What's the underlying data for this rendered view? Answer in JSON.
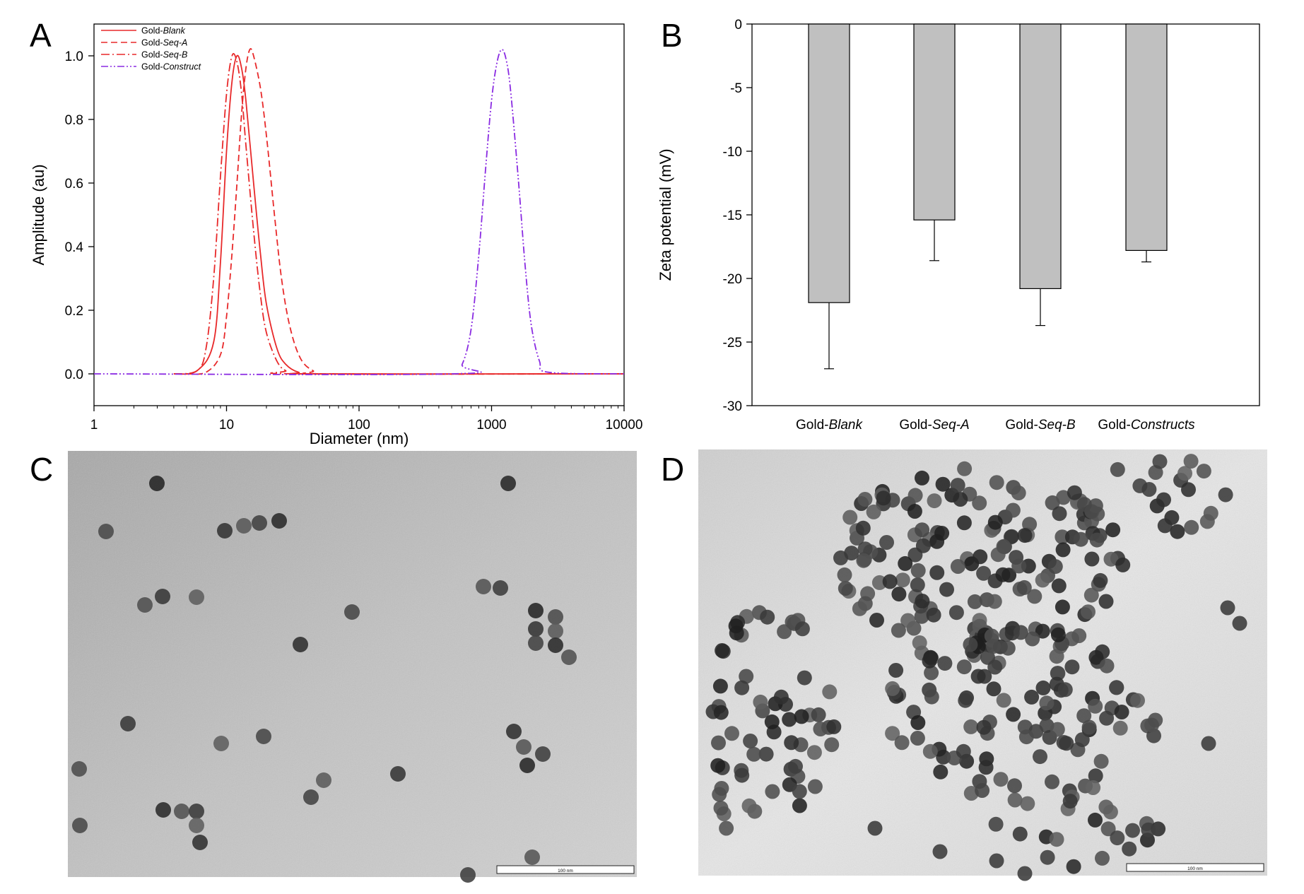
{
  "panels": {
    "A": "A",
    "B": "B",
    "C": "C",
    "D": "D"
  },
  "chart_data": [
    {
      "panel": "A",
      "type": "line",
      "xscale": "log",
      "xlabel": "Diameter (nm)",
      "ylabel": "Amplitude (au)",
      "xlim": [
        1,
        10000
      ],
      "ylim": [
        -0.1,
        1.1
      ],
      "xticks": [
        "1",
        "10",
        "100",
        "1000",
        "10000"
      ],
      "yticks": [
        "0.0",
        "0.2",
        "0.4",
        "0.6",
        "0.8",
        "1.0"
      ],
      "legend_position": "top-left",
      "colors": {
        "gold": "#e8292a",
        "construct": "#8a2be2"
      },
      "series": [
        {
          "name": "Gold-",
          "name_italic": "Blank",
          "style": "solid",
          "color": "#e8292a",
          "x": [
            4,
            6,
            8,
            9,
            10,
            11,
            12,
            13,
            14,
            16,
            18,
            20,
            24,
            28,
            35,
            50,
            10000
          ],
          "y": [
            0,
            0.01,
            0.1,
            0.35,
            0.7,
            0.92,
            1.0,
            0.96,
            0.86,
            0.6,
            0.38,
            0.22,
            0.08,
            0.03,
            0.005,
            0,
            0
          ]
        },
        {
          "name": "Gold-",
          "name_italic": "Seq-A",
          "style": "dashed",
          "color": "#e8292a",
          "x": [
            5,
            7,
            9,
            10,
            11,
            12,
            13,
            14,
            15,
            16,
            18,
            20,
            23,
            26,
            30,
            36,
            45,
            60,
            10000
          ],
          "y": [
            0,
            0.005,
            0.06,
            0.18,
            0.38,
            0.6,
            0.82,
            0.96,
            1.02,
            1.0,
            0.9,
            0.75,
            0.5,
            0.3,
            0.15,
            0.05,
            0.01,
            0,
            0
          ]
        },
        {
          "name": "Gold-",
          "name_italic": "Seq-B",
          "style": "dashdot",
          "color": "#e8292a",
          "x": [
            4,
            6,
            7,
            8,
            9,
            10,
            11,
            12,
            13,
            14,
            16,
            18,
            20,
            24,
            28,
            35,
            10000
          ],
          "y": [
            0,
            0.01,
            0.08,
            0.3,
            0.62,
            0.88,
            1.0,
            0.98,
            0.88,
            0.72,
            0.45,
            0.25,
            0.13,
            0.04,
            0.01,
            0,
            0
          ]
        },
        {
          "name": "Gold-",
          "name_italic": "Construct",
          "style": "dashdotdot",
          "color": "#8a2be2",
          "x": [
            1,
            500,
            600,
            700,
            800,
            900,
            1000,
            1100,
            1200,
            1300,
            1400,
            1600,
            1800,
            2000,
            2300,
            2700,
            10000
          ],
          "y": [
            0,
            0,
            0.03,
            0.14,
            0.37,
            0.64,
            0.86,
            0.98,
            1.02,
            0.98,
            0.88,
            0.6,
            0.33,
            0.15,
            0.04,
            0.005,
            0
          ]
        }
      ]
    },
    {
      "panel": "B",
      "type": "bar",
      "ylabel": "Zeta potential (mV)",
      "ylim": [
        -30,
        0
      ],
      "yticks": [
        "0",
        "-5",
        "-10",
        "-15",
        "-20",
        "-25",
        "-30"
      ],
      "bar_color": "#c0c0c0",
      "categories": [
        {
          "prefix": "Gold-",
          "italic": "Blank"
        },
        {
          "prefix": "Gold-",
          "italic": "Seq-A"
        },
        {
          "prefix": "Gold-",
          "italic": "Seq-B"
        },
        {
          "prefix": "Gold-",
          "italic": "Constructs"
        }
      ],
      "values": [
        -21.9,
        -15.4,
        -20.8,
        -17.8
      ],
      "errors": [
        5.2,
        3.2,
        2.9,
        0.9
      ]
    }
  ],
  "micrographs": {
    "C": {
      "scale_bar_label": "100 nm"
    },
    "D": {
      "scale_bar_label": "100 nm"
    }
  }
}
